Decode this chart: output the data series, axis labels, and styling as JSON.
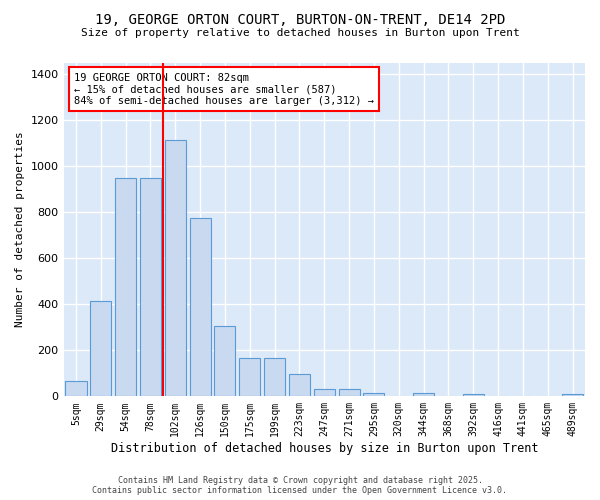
{
  "title_line1": "19, GEORGE ORTON COURT, BURTON-ON-TRENT, DE14 2PD",
  "title_line2": "Size of property relative to detached houses in Burton upon Trent",
  "xlabel": "Distribution of detached houses by size in Burton upon Trent",
  "ylabel": "Number of detached properties",
  "categories": [
    "5sqm",
    "29sqm",
    "54sqm",
    "78sqm",
    "102sqm",
    "126sqm",
    "150sqm",
    "175sqm",
    "199sqm",
    "223sqm",
    "247sqm",
    "271sqm",
    "295sqm",
    "320sqm",
    "344sqm",
    "368sqm",
    "392sqm",
    "416sqm",
    "441sqm",
    "465sqm",
    "489sqm"
  ],
  "values": [
    65,
    415,
    950,
    950,
    1115,
    775,
    305,
    165,
    165,
    95,
    30,
    30,
    15,
    0,
    15,
    0,
    10,
    0,
    0,
    0,
    10
  ],
  "bar_color": "#c9d9f0",
  "bar_edge_color": "#5b9bd5",
  "vline_color": "red",
  "vline_pos": 3.5,
  "annotation_text": "19 GEORGE ORTON COURT: 82sqm\n← 15% of detached houses are smaller (587)\n84% of semi-detached houses are larger (3,312) →",
  "annotation_box_color": "white",
  "annotation_box_edge_color": "red",
  "ylim": [
    0,
    1450
  ],
  "plot_bg_color": "#dce9f8",
  "fig_bg_color": "#ffffff",
  "grid_color": "#ffffff",
  "footer_line1": "Contains HM Land Registry data © Crown copyright and database right 2025.",
  "footer_line2": "Contains public sector information licensed under the Open Government Licence v3.0."
}
